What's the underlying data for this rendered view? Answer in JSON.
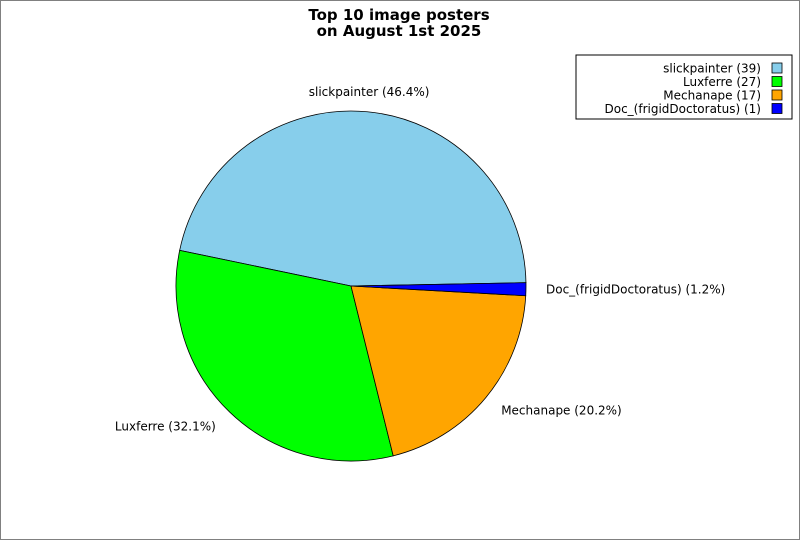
{
  "chart_data": {
    "type": "pie",
    "title": [
      "Top 10 image posters",
      "on August 1st 2025"
    ],
    "legend_position": "top-right",
    "slices": [
      {
        "name": "slickpainter",
        "count": 39,
        "percent": 46.4,
        "label": "slickpainter (46.4%)",
        "legend": "slickpainter (39)",
        "color": "#87CEEB"
      },
      {
        "name": "Luxferre",
        "count": 27,
        "percent": 32.1,
        "label": "Luxferre (32.1%)",
        "legend": "Luxferre (27)",
        "color": "#00FF00"
      },
      {
        "name": "Mechanape",
        "count": 17,
        "percent": 20.2,
        "label": "Mechanape (20.2%)",
        "legend": "Mechanape (17)",
        "color": "#FFA500"
      },
      {
        "name": "Doc_(frigidDoctoratus)",
        "count": 1,
        "percent": 1.2,
        "label": "Doc_(frigidDoctoratus) (1.2%)",
        "legend": "Doc_(frigidDoctoratus) (1)",
        "color": "#0000FF"
      }
    ]
  }
}
